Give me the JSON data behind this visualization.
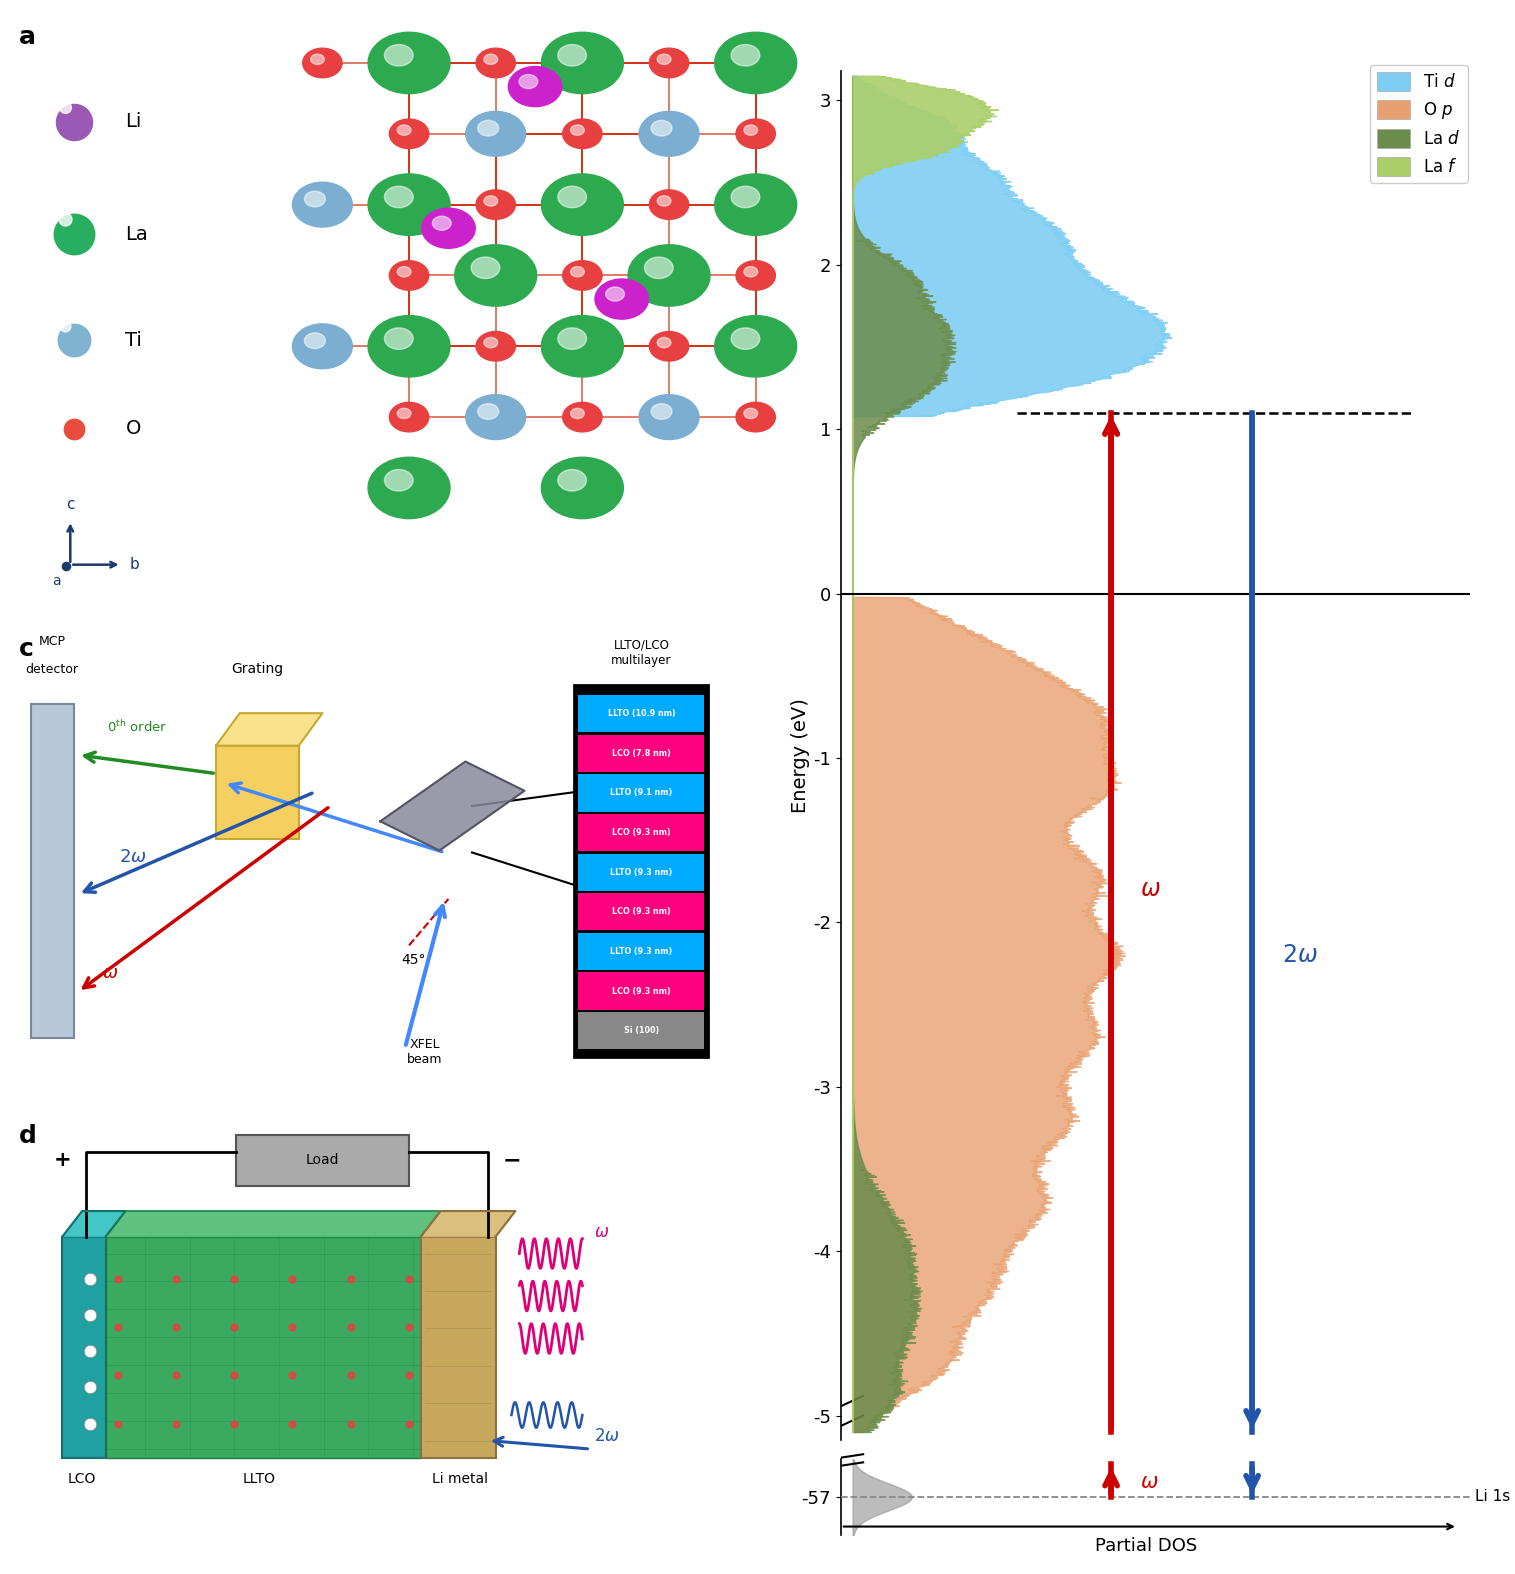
{
  "panel_label_fontsize": 18,
  "dos_ylabel": "Energy (eV)",
  "dos_xlabel": "Partial DOS",
  "li1s_label": "Li 1s",
  "fermi_energy": 0.0,
  "cbm_energy": 1.1,
  "colors": {
    "Ti_d": "#7ECEF4",
    "O_p": "#E8A070",
    "La_d": "#6B8C4A",
    "La_f": "#AACF6A",
    "omega_arrow": "#CC0000",
    "twoomega_arrow": "#2255AA",
    "fermi_line": "#000000"
  },
  "legend_entries": [
    {
      "label": "Ti d",
      "color": "#7ECEF4"
    },
    {
      "label": "O p",
      "color": "#E8A070"
    },
    {
      "label": "La d",
      "color": "#6B8C4A"
    },
    {
      "label": "La f",
      "color": "#AACF6A"
    }
  ],
  "atom_legend": [
    {
      "label": "Li",
      "color": "#9B59B6",
      "size": 0.055
    },
    {
      "label": "La",
      "color": "#27AE60",
      "size": 0.065
    },
    {
      "label": "Ti",
      "color": "#7FB3D0",
      "size": 0.05
    },
    {
      "label": "O",
      "color": "#E74C3C",
      "size": 0.03
    }
  ],
  "multilayer_labels": [
    "LLTO (10.9 nm)",
    "LCO (7.8 nm)",
    "LLTO (9.1 nm)",
    "LCO (9.3 nm)",
    "LLTO (9.3 nm)",
    "LCO (9.3 nm)",
    "LLTO (9.3 nm)",
    "LCO (9.3 nm)",
    "Si (100)"
  ],
  "multilayer_colors": [
    "#00AAFF",
    "#FF007F",
    "#00AAFF",
    "#FF007F",
    "#00AAFF",
    "#FF007F",
    "#00AAFF",
    "#FF007F",
    "#888888"
  ]
}
